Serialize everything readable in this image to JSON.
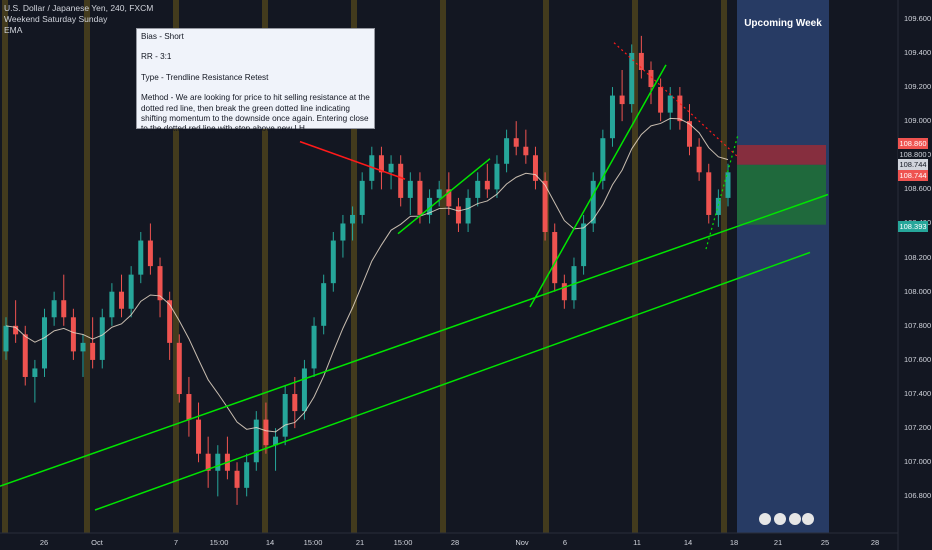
{
  "header": {
    "symbol": "U.S. Dollar / Japanese Yen, 240, FXCM",
    "session": "Weekend Saturday Sunday",
    "indicator": "EMA"
  },
  "note": {
    "bias": "Bias - Short",
    "rr": "RR - 3:1",
    "type": "Type - Trendline Resistance Retest",
    "method": "Method - We are looking for price to hit selling resistance at the dotted red line, then break the green dotted line indicating shifting momentum to the downside once again. Entering close to the dotted red line with stop above new LH."
  },
  "upcoming_label": "Upcoming Week",
  "colors": {
    "background": "#131722",
    "up_candle": "#26a69a",
    "down_candle": "#ef5350",
    "trendline_green": "#00e600",
    "trendline_red": "#ff1a1a",
    "weekend_band": "#6b5a1a",
    "upcoming_band": "#2a3f6b",
    "stop_zone": "#8b2d3c",
    "target_zone": "#1f6b3a"
  },
  "chart_data": {
    "type": "candlestick",
    "y_axis": {
      "ticks": [
        "109.600",
        "109.400",
        "109.200",
        "109.000",
        "108.800",
        "108.600",
        "108.400",
        "108.200",
        "108.000",
        "107.800",
        "107.600",
        "107.400",
        "107.200",
        "107.000",
        "106.800"
      ],
      "range": [
        106.72,
        109.64
      ]
    },
    "x_axis": {
      "ticks": [
        "26",
        "Oct",
        "7",
        "15:00",
        "14",
        "15:00",
        "21",
        "15:00",
        "28",
        "Nov",
        "6",
        "11",
        "14",
        "18",
        "21",
        "25",
        "28"
      ]
    },
    "price_labels": [
      {
        "value": "108.860",
        "kind": "stop"
      },
      {
        "value": "108.800",
        "kind": "axis"
      },
      {
        "value": "108.744",
        "kind": "current"
      },
      {
        "value": "108.744",
        "kind": "entry"
      },
      {
        "value": "108.393",
        "kind": "target"
      }
    ],
    "trade": {
      "direction": "short",
      "entry": 108.744,
      "stop": 108.86,
      "target": 108.393,
      "risk_reward": "3:1"
    },
    "trendlines": [
      {
        "color": "green",
        "style": "solid",
        "from": [
          0,
          106.86
        ],
        "to": [
          828,
          108.57
        ]
      },
      {
        "color": "green",
        "style": "solid",
        "from": [
          95,
          106.72
        ],
        "to": [
          810,
          108.23
        ]
      },
      {
        "color": "green",
        "style": "solid",
        "from": [
          398,
          108.34
        ],
        "to": [
          490,
          108.78
        ]
      },
      {
        "color": "green",
        "style": "solid",
        "from": [
          530,
          107.91
        ],
        "to": [
          666,
          109.33
        ]
      },
      {
        "color": "green",
        "style": "dotted",
        "from": [
          706,
          108.25
        ],
        "to": [
          738,
          108.92
        ]
      },
      {
        "color": "red",
        "style": "solid",
        "from": [
          300,
          108.88
        ],
        "to": [
          405,
          108.66
        ]
      },
      {
        "color": "red",
        "style": "dotted",
        "from": [
          614,
          109.46
        ],
        "to": [
          738,
          108.79
        ]
      }
    ],
    "ohlc": [
      [
        107.65,
        107.85,
        107.6,
        107.8
      ],
      [
        107.8,
        107.95,
        107.7,
        107.75
      ],
      [
        107.75,
        107.8,
        107.45,
        107.5
      ],
      [
        107.5,
        107.6,
        107.35,
        107.55
      ],
      [
        107.55,
        107.9,
        107.5,
        107.85
      ],
      [
        107.85,
        108.0,
        107.8,
        107.95
      ],
      [
        107.95,
        108.1,
        107.8,
        107.85
      ],
      [
        107.85,
        107.9,
        107.6,
        107.65
      ],
      [
        107.65,
        107.75,
        107.5,
        107.7
      ],
      [
        107.7,
        107.85,
        107.55,
        107.6
      ],
      [
        107.6,
        107.9,
        107.55,
        107.85
      ],
      [
        107.85,
        108.05,
        107.8,
        108.0
      ],
      [
        108.0,
        108.1,
        107.85,
        107.9
      ],
      [
        107.9,
        108.15,
        107.85,
        108.1
      ],
      [
        108.1,
        108.35,
        108.05,
        108.3
      ],
      [
        108.3,
        108.4,
        108.1,
        108.15
      ],
      [
        108.15,
        108.2,
        107.85,
        107.95
      ],
      [
        107.95,
        108.0,
        107.6,
        107.7
      ],
      [
        107.7,
        107.75,
        107.35,
        107.4
      ],
      [
        107.4,
        107.5,
        107.15,
        107.25
      ],
      [
        107.25,
        107.35,
        107.0,
        107.05
      ],
      [
        107.05,
        107.15,
        106.85,
        106.95
      ],
      [
        106.95,
        107.1,
        106.8,
        107.05
      ],
      [
        107.05,
        107.15,
        106.9,
        106.95
      ],
      [
        106.95,
        107.0,
        106.75,
        106.85
      ],
      [
        106.85,
        107.05,
        106.8,
        107.0
      ],
      [
        107.0,
        107.3,
        106.95,
        107.25
      ],
      [
        107.25,
        107.35,
        107.05,
        107.1
      ],
      [
        107.1,
        107.2,
        106.95,
        107.15
      ],
      [
        107.15,
        107.45,
        107.1,
        107.4
      ],
      [
        107.4,
        107.5,
        107.2,
        107.3
      ],
      [
        107.3,
        107.6,
        107.25,
        107.55
      ],
      [
        107.55,
        107.85,
        107.5,
        107.8
      ],
      [
        107.8,
        108.1,
        107.75,
        108.05
      ],
      [
        108.05,
        108.35,
        108.0,
        108.3
      ],
      [
        108.3,
        108.45,
        108.2,
        108.4
      ],
      [
        108.4,
        108.5,
        108.3,
        108.45
      ],
      [
        108.45,
        108.7,
        108.4,
        108.65
      ],
      [
        108.65,
        108.85,
        108.6,
        108.8
      ],
      [
        108.8,
        108.85,
        108.6,
        108.7
      ],
      [
        108.7,
        108.8,
        108.6,
        108.75
      ],
      [
        108.75,
        108.8,
        108.5,
        108.55
      ],
      [
        108.55,
        108.7,
        108.45,
        108.65
      ],
      [
        108.65,
        108.7,
        108.4,
        108.45
      ],
      [
        108.45,
        108.6,
        108.4,
        108.55
      ],
      [
        108.55,
        108.65,
        108.5,
        108.6
      ],
      [
        108.6,
        108.7,
        108.45,
        108.5
      ],
      [
        108.5,
        108.55,
        108.35,
        108.4
      ],
      [
        108.4,
        108.6,
        108.35,
        108.55
      ],
      [
        108.55,
        108.7,
        108.5,
        108.65
      ],
      [
        108.65,
        108.75,
        108.55,
        108.6
      ],
      [
        108.6,
        108.8,
        108.55,
        108.75
      ],
      [
        108.75,
        108.95,
        108.7,
        108.9
      ],
      [
        108.9,
        109.0,
        108.8,
        108.85
      ],
      [
        108.85,
        108.95,
        108.75,
        108.8
      ],
      [
        108.8,
        108.85,
        108.6,
        108.65
      ],
      [
        108.65,
        108.7,
        108.3,
        108.35
      ],
      [
        108.35,
        108.4,
        108.0,
        108.05
      ],
      [
        108.05,
        108.1,
        107.9,
        107.95
      ],
      [
        107.95,
        108.2,
        107.9,
        108.15
      ],
      [
        108.15,
        108.45,
        108.1,
        108.4
      ],
      [
        108.4,
        108.7,
        108.35,
        108.65
      ],
      [
        108.65,
        108.95,
        108.6,
        108.9
      ],
      [
        108.9,
        109.2,
        108.85,
        109.15
      ],
      [
        109.15,
        109.3,
        109.0,
        109.1
      ],
      [
        109.1,
        109.45,
        109.05,
        109.4
      ],
      [
        109.4,
        109.5,
        109.25,
        109.3
      ],
      [
        109.3,
        109.35,
        109.1,
        109.2
      ],
      [
        109.2,
        109.25,
        109.0,
        109.05
      ],
      [
        109.05,
        109.2,
        108.95,
        109.15
      ],
      [
        109.15,
        109.2,
        108.95,
        109.0
      ],
      [
        109.0,
        109.1,
        108.8,
        108.85
      ],
      [
        108.85,
        108.9,
        108.65,
        108.7
      ],
      [
        108.7,
        108.75,
        108.4,
        108.45
      ],
      [
        108.45,
        108.6,
        108.38,
        108.55
      ],
      [
        108.55,
        108.75,
        108.5,
        108.7
      ]
    ]
  }
}
